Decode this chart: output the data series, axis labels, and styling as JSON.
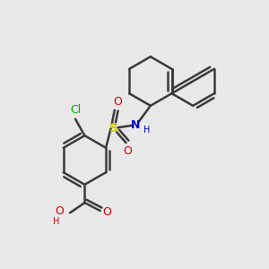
{
  "bg_color": "#e8e8e8",
  "bond_color": "#3a3a3a",
  "bond_width": 1.8,
  "figsize": [
    3.0,
    3.0
  ],
  "dpi": 100,
  "xlim": [
    0,
    10
  ],
  "ylim": [
    0,
    10
  ],
  "colors": {
    "S": "#cccc00",
    "O": "#cc0000",
    "N": "#0000cc",
    "Cl": "#00aa00",
    "H": "#3a3a3a",
    "C": "#3a3a3a"
  }
}
